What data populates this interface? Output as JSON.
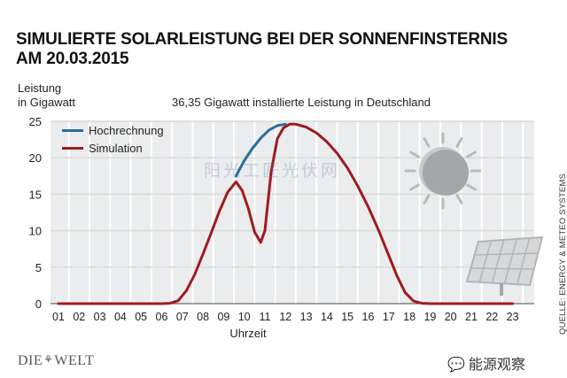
{
  "header": {
    "title_line1": "SIMULIERTE SOLARLEISTUNG BEI DER SONNENFINSTERNIS",
    "title_line2": "AM 20.03.2015"
  },
  "footer": {
    "source": "QUELLE: ENERGY & METEO SYSTEMS",
    "logo_left": "DIE",
    "logo_right": "WELT",
    "wechat": "能源观察"
  },
  "watermark": "阳光工匠光伏网",
  "colors": {
    "hochrechnung": "#2b6d9e",
    "simulation": "#9e1b1f",
    "grid": "#d9dadc",
    "plot_bg": "#ebeced"
  },
  "chart_data": {
    "type": "line",
    "subtitle": "36,35 Gigawatt installierte Leistung in Deutschland",
    "ylabel_line1": "Leistung",
    "ylabel_line2": "in Gigawatt",
    "xlabel": "Uhrzeit",
    "ylim": [
      0,
      25
    ],
    "yticks": [
      0,
      5,
      10,
      15,
      20,
      25
    ],
    "categories": [
      "01",
      "02",
      "03",
      "04",
      "05",
      "06",
      "07",
      "08",
      "09",
      "10",
      "11",
      "12",
      "13",
      "14",
      "15",
      "16",
      "17",
      "18",
      "19",
      "20",
      "21",
      "22",
      "23"
    ],
    "legend_position": "top-left",
    "grid": true,
    "series": [
      {
        "name": "Hochrechnung",
        "x": [
          9.6,
          10.0,
          10.4,
          10.8,
          11.2,
          11.6,
          12.0
        ],
        "y": [
          17.5,
          19.6,
          21.3,
          22.7,
          23.8,
          24.4,
          24.6
        ]
      },
      {
        "name": "Simulation",
        "x": [
          1,
          2,
          3,
          4,
          5,
          6,
          6.4,
          6.8,
          7.2,
          7.6,
          8.0,
          8.4,
          8.8,
          9.2,
          9.6,
          9.9,
          10.2,
          10.5,
          10.8,
          11.0,
          11.3,
          11.6,
          11.9,
          12.2,
          12.5,
          13.0,
          13.5,
          14.0,
          14.5,
          15.0,
          15.5,
          16.0,
          16.5,
          17.0,
          17.4,
          17.8,
          18.2,
          18.6,
          19,
          20,
          21,
          22,
          23
        ],
        "y": [
          0,
          0,
          0,
          0,
          0,
          0,
          0.05,
          0.4,
          1.8,
          4.0,
          6.8,
          9.7,
          12.7,
          15.3,
          16.7,
          15.5,
          13.0,
          9.8,
          8.4,
          10.0,
          18.0,
          22.6,
          24.1,
          24.6,
          24.6,
          24.2,
          23.4,
          22.2,
          20.6,
          18.6,
          16.1,
          13.3,
          10.1,
          6.6,
          3.8,
          1.5,
          0.35,
          0.05,
          0,
          0,
          0,
          0,
          0
        ]
      }
    ]
  }
}
